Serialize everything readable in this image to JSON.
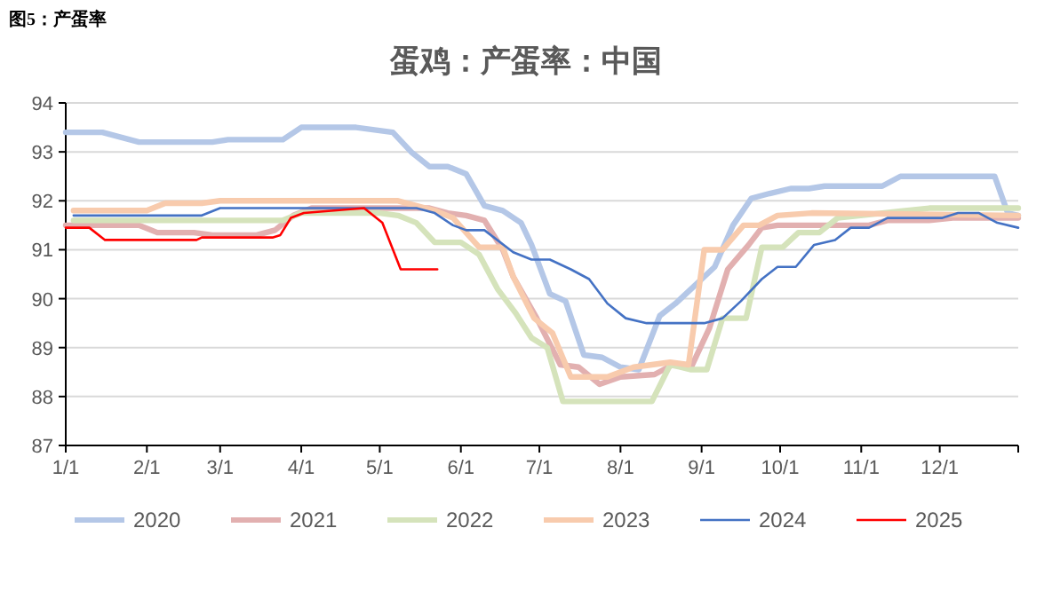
{
  "chart_data": {
    "type": "line",
    "title": "蛋鸡：产蛋率：中国",
    "annotations": [
      "图5：产蛋率"
    ],
    "xlim": [
      "--01-01",
      "--12-31"
    ],
    "xticks": [
      {
        "value": "--01-01",
        "label": "1/1"
      },
      {
        "value": "--02-01",
        "label": "2/1"
      },
      {
        "value": "--03-01",
        "label": "3/1"
      },
      {
        "value": "--04-01",
        "label": "4/1"
      },
      {
        "value": "--05-01",
        "label": "5/1"
      },
      {
        "value": "--06-01",
        "label": "6/1"
      },
      {
        "value": "--07-01",
        "label": "7/1"
      },
      {
        "value": "--08-01",
        "label": "8/1"
      },
      {
        "value": "--09-01",
        "label": "9/1"
      },
      {
        "value": "--10-01",
        "label": "10/1"
      },
      {
        "value": "--11-01",
        "label": "11/1"
      },
      {
        "value": "--12-01",
        "label": "12/1"
      },
      {
        "value": "--12-31",
        "label": null
      }
    ],
    "ylim": [
      87,
      94
    ],
    "yticks": [
      87,
      88,
      89,
      90,
      91,
      92,
      93,
      94
    ],
    "grid": "y",
    "legend": "bottom",
    "marker": "none",
    "line_style": "solid",
    "series": [
      {
        "name": "2020",
        "color": "#b4c7e7",
        "x": [
          "--01-01",
          "--01-15",
          "--01-29",
          "--02-26",
          "--03-04",
          "--03-25",
          "--04-01",
          "--04-22",
          "--04-29",
          "--05-06",
          "--05-13",
          "--05-20",
          "--05-27",
          "--06-03",
          "--06-10",
          "--06-17",
          "--06-24",
          "--06-28",
          "--07-05",
          "--07-11",
          "--07-18",
          "--07-25",
          "--08-01",
          "--08-08",
          "--08-16",
          "--08-22",
          "--08-28",
          "--09-06",
          "--09-13",
          "--09-20",
          "--09-27",
          "--10-05",
          "--10-12",
          "--10-18",
          "--11-09",
          "--11-16",
          "--12-22",
          "--12-27",
          "--12-31"
        ],
        "values": [
          93.4,
          93.4,
          93.2,
          93.2,
          93.25,
          93.25,
          93.5,
          93.5,
          93.45,
          93.4,
          93.0,
          92.7,
          92.7,
          92.55,
          91.9,
          91.8,
          91.55,
          91.1,
          90.1,
          89.95,
          88.85,
          88.8,
          88.6,
          88.55,
          89.65,
          89.9,
          90.2,
          90.65,
          91.5,
          92.05,
          92.15,
          92.25,
          92.25,
          92.3,
          92.3,
          92.5,
          92.5,
          91.75,
          91.7
        ]
      },
      {
        "name": "2021",
        "color": "#e2b0b0",
        "x": [
          "--01-01",
          "--01-29",
          "--02-05",
          "--02-19",
          "--02-26",
          "--03-15",
          "--03-22",
          "--03-29",
          "--04-05",
          "--05-20",
          "--05-27",
          "--06-03",
          "--06-10",
          "--06-17",
          "--06-21",
          "--06-30",
          "--07-09",
          "--07-16",
          "--07-24",
          "--08-01",
          "--08-14",
          "--08-21",
          "--08-28",
          "--09-04",
          "--09-11",
          "--09-19",
          "--09-24",
          "--09-30",
          "--11-04",
          "--11-11",
          "--11-27",
          "--12-06",
          "--12-31"
        ],
        "values": [
          91.5,
          91.5,
          91.35,
          91.35,
          91.3,
          91.3,
          91.4,
          91.7,
          91.85,
          91.85,
          91.75,
          91.7,
          91.6,
          91.0,
          90.45,
          89.6,
          88.65,
          88.6,
          88.25,
          88.4,
          88.45,
          88.65,
          88.6,
          89.4,
          90.6,
          91.1,
          91.45,
          91.5,
          91.5,
          91.6,
          91.6,
          91.65,
          91.65
        ]
      },
      {
        "name": "2022",
        "color": "#d5e3bb",
        "x": [
          "--01-04",
          "--03-25",
          "--04-01",
          "--05-01",
          "--05-08",
          "--05-15",
          "--05-22",
          "--06-01",
          "--06-08",
          "--06-15",
          "--06-22",
          "--06-28",
          "--07-04",
          "--07-10",
          "--08-13",
          "--08-20",
          "--08-28",
          "--09-03",
          "--09-09",
          "--09-18",
          "--09-24",
          "--10-02",
          "--10-08",
          "--10-16",
          "--10-23",
          "--11-27",
          "--12-31"
        ],
        "values": [
          91.6,
          91.6,
          91.75,
          91.75,
          91.7,
          91.55,
          91.15,
          91.15,
          90.9,
          90.2,
          89.7,
          89.2,
          89.0,
          87.9,
          87.9,
          88.65,
          88.55,
          88.55,
          89.6,
          89.6,
          91.05,
          91.05,
          91.35,
          91.35,
          91.65,
          91.85,
          91.85
        ]
      },
      {
        "name": "2023",
        "color": "#f8cbad",
        "x": [
          "--01-04",
          "--02-01",
          "--02-08",
          "--02-22",
          "--03-01",
          "--05-08",
          "--05-15",
          "--05-22",
          "--05-29",
          "--06-08",
          "--06-17",
          "--06-21",
          "--06-29",
          "--07-06",
          "--07-13",
          "--07-27",
          "--08-06",
          "--08-20",
          "--08-27",
          "--09-02",
          "--09-09",
          "--09-17",
          "--09-23",
          "--09-30",
          "--10-13",
          "--12-31"
        ],
        "values": [
          91.8,
          91.8,
          91.95,
          91.95,
          92.0,
          92.0,
          91.9,
          91.8,
          91.65,
          91.05,
          91.05,
          90.45,
          89.6,
          89.3,
          88.4,
          88.4,
          88.6,
          88.7,
          88.65,
          91.0,
          91.0,
          91.5,
          91.5,
          91.7,
          91.75,
          91.7
        ]
      },
      {
        "name": "2024",
        "color": "#4472c4",
        "x": [
          "--01-04",
          "--02-22",
          "--03-01",
          "--05-15",
          "--05-22",
          "--05-29",
          "--06-03",
          "--06-10",
          "--06-21",
          "--06-28",
          "--07-05",
          "--07-13",
          "--07-20",
          "--07-27",
          "--08-03",
          "--08-11",
          "--09-02",
          "--09-09",
          "--09-16",
          "--09-24",
          "--09-30",
          "--10-07",
          "--10-14",
          "--10-22",
          "--10-28",
          "--11-04",
          "--11-11",
          "--12-02",
          "--12-08",
          "--12-16",
          "--12-23",
          "--12-31"
        ],
        "values": [
          91.7,
          91.7,
          91.85,
          91.85,
          91.75,
          91.5,
          91.4,
          91.4,
          90.95,
          90.8,
          90.8,
          90.6,
          90.4,
          89.9,
          89.6,
          89.5,
          89.5,
          89.6,
          89.95,
          90.4,
          90.65,
          90.65,
          91.1,
          91.2,
          91.45,
          91.45,
          91.65,
          91.65,
          91.75,
          91.75,
          91.55,
          91.45
        ]
      },
      {
        "name": "2025",
        "color": "#ff0000",
        "x": [
          "--01-01",
          "--01-10",
          "--01-16",
          "--02-20",
          "--02-22",
          "--03-21",
          "--03-24",
          "--03-28",
          "--04-02",
          "--04-25",
          "--05-02",
          "--05-09",
          "--05-23"
        ],
        "values": [
          91.45,
          91.45,
          91.2,
          91.2,
          91.25,
          91.25,
          91.3,
          91.65,
          91.75,
          91.85,
          91.55,
          90.6,
          90.6
        ]
      }
    ]
  }
}
